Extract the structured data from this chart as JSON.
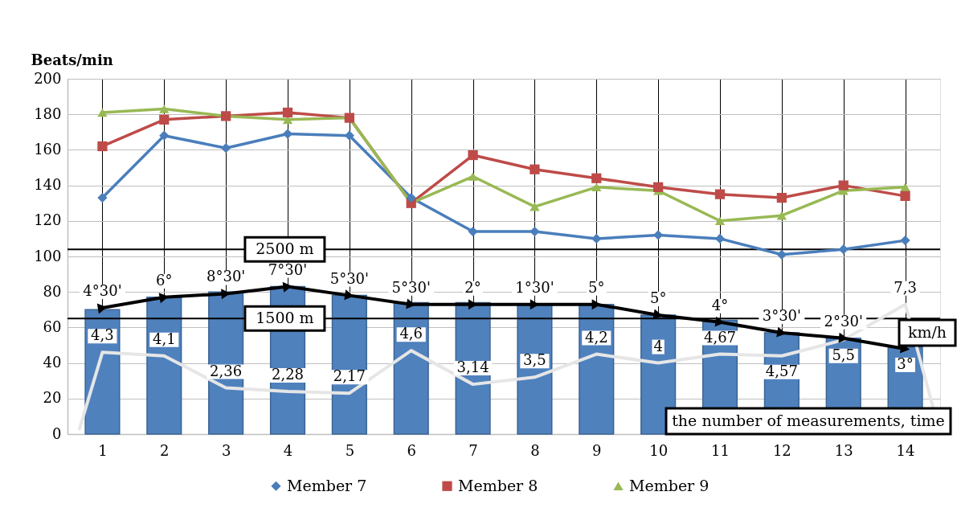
{
  "chart_data": {
    "type": "bar",
    "ylabel": "Beats/min",
    "xlabel": "the number of measurements, time",
    "x": [
      1,
      2,
      3,
      4,
      5,
      6,
      7,
      8,
      9,
      10,
      11,
      12,
      13,
      14
    ],
    "xlim": [
      0.5,
      14.5
    ],
    "xticks": [
      1,
      2,
      3,
      4,
      5,
      6,
      7,
      8,
      9,
      10,
      11,
      12,
      13,
      14
    ],
    "ylim": [
      0,
      200
    ],
    "yticks": [
      0,
      20,
      40,
      60,
      80,
      100,
      120,
      140,
      160,
      180,
      200
    ],
    "grid": true,
    "legend": "bottom",
    "series": [
      {
        "color": "#4f81bd",
        "values": [
          70,
          77,
          80,
          83,
          78,
          74,
          74,
          73,
          73,
          67,
          64,
          57,
          54,
          49
        ]
      },
      {
        "type": "line",
        "color": "#e6e6e6",
        "marker": "none",
        "x": [
          0.63,
          1,
          2,
          3,
          4,
          5,
          6,
          7,
          8,
          9,
          10,
          11,
          12,
          13,
          14,
          14.45
        ],
        "values": [
          3,
          46,
          44,
          26,
          24,
          23,
          47,
          28,
          32,
          45,
          40,
          45,
          44,
          53,
          73,
          15
        ]
      },
      {
        "type": "line",
        "color": "#000000",
        "marker": "triangle",
        "values": [
          71,
          77,
          79,
          83,
          78,
          73,
          73,
          73,
          73,
          67,
          63,
          57,
          54,
          48
        ]
      },
      {
        "type": "line",
        "name": "Member 7",
        "color": "#4a7ebb",
        "marker": "diamond",
        "values": [
          133,
          168,
          161,
          169,
          168,
          133,
          114,
          114,
          110,
          112,
          110,
          101,
          104,
          109
        ]
      },
      {
        "type": "line",
        "name": "Member 8",
        "color": "#be4b48",
        "marker": "square",
        "values": [
          162,
          177,
          179,
          181,
          178,
          130,
          157,
          149,
          144,
          139,
          135,
          133,
          140,
          134
        ]
      },
      {
        "type": "line",
        "name": "Member 9",
        "color": "#98b954",
        "marker": "triangle",
        "values": [
          181,
          183,
          179,
          177,
          178,
          130,
          145,
          128,
          139,
          137,
          120,
          123,
          137,
          139
        ]
      }
    ],
    "ref_lines": [
      {
        "axis": "y",
        "value": 104,
        "label": "2500 m",
        "color": "#000000"
      },
      {
        "axis": "y",
        "value": 65,
        "label": "1500 m",
        "color": "#000000"
      }
    ],
    "annotations": [
      {
        "text": "4°30'",
        "x": 1,
        "y": 71
      },
      {
        "text": "6°",
        "x": 2,
        "y": 77
      },
      {
        "text": "8°30'",
        "x": 3,
        "y": 79
      },
      {
        "text": "7°30'",
        "x": 4,
        "y": 83
      },
      {
        "text": "5°30'",
        "x": 5,
        "y": 78
      },
      {
        "text": "5°30'",
        "x": 6,
        "y": 73
      },
      {
        "text": "2°",
        "x": 7,
        "y": 73
      },
      {
        "text": "1°30'",
        "x": 8,
        "y": 73
      },
      {
        "text": "5°",
        "x": 9,
        "y": 73
      },
      {
        "text": "5°",
        "x": 10,
        "y": 67
      },
      {
        "text": "4°",
        "x": 11,
        "y": 63
      },
      {
        "text": "3°30'",
        "x": 12,
        "y": 57
      },
      {
        "text": "2°30'",
        "x": 13,
        "y": 54
      },
      {
        "text": "3°",
        "x": 14,
        "y": 48
      },
      {
        "text": "4,3",
        "x": 1,
        "y": 46
      },
      {
        "text": "4,1",
        "x": 2,
        "y": 44
      },
      {
        "text": "2,36",
        "x": 3,
        "y": 26
      },
      {
        "text": "2,28",
        "x": 4,
        "y": 24
      },
      {
        "text": "2,17",
        "x": 5,
        "y": 23
      },
      {
        "text": "4,6",
        "x": 6,
        "y": 47
      },
      {
        "text": "3,14",
        "x": 7,
        "y": 28
      },
      {
        "text": "3,5",
        "x": 8,
        "y": 32
      },
      {
        "text": "4,2",
        "x": 9,
        "y": 45
      },
      {
        "text": "4",
        "x": 10,
        "y": 40
      },
      {
        "text": "4,67",
        "x": 11,
        "y": 45
      },
      {
        "text": "4,57",
        "x": 12,
        "y": 44
      },
      {
        "text": "5,5",
        "x": 13,
        "y": 53
      },
      {
        "text": "7,3",
        "x": 14,
        "y": 73
      },
      "km/h"
    ]
  }
}
